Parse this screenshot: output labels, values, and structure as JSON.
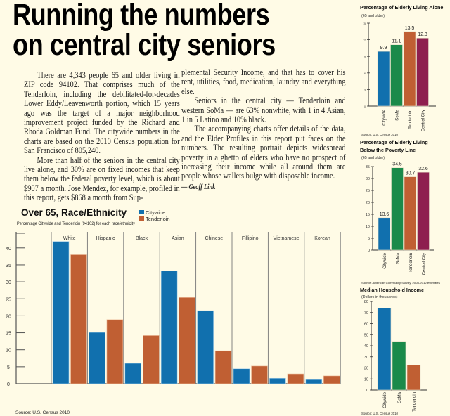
{
  "headline": [
    "Running the numbers",
    "on central city seniors"
  ],
  "article": {
    "col1": [
      "There are 4,343 people 65 and older living in ZIP code 94102. That comprises much of the Tenderloin, including the debilitated-for-decades Lower Eddy/Leavenworth portion, which 15 years ago was the target of a major neighborhood improvement project funded by the Richard and Rhoda Goldman Fund. The citywide numbers in the charts are based on the 2010 Census population for San Francisco of 805,240.",
      "More than half of the seniors in the central city live alone, and 30% are on fixed incomes that keep them below the federal poverty level, which is about $907 a month. Jose Mendez, for example, profiled in this report, gets $868 a month from Sup-"
    ],
    "col2": [
      "plemental Security Income, and that has to cover his rent, utilities, food, medication, laundry and everything else.",
      "Seniors in the central city — Tenderloin and western SoMa — are 63% nonwhite, with 1 in 4 Asian, 1 in 5 Latino and 10% black.",
      "The accompanying charts offer details of the data, and the Elder Profiles in this report put faces on the numbers. The resulting portrait depicts widespread poverty in a ghetto of elders who have no prospect of increasing their income while all around them are people whose wallets bulge with disposable income."
    ],
    "byline": "— Geoff Link"
  },
  "colors": {
    "citywide": "#1170ae",
    "soma": "#1a8a4a",
    "tenderloin": "#c05f33",
    "central_city": "#8e1f4f",
    "background": "#fffbe6"
  },
  "chart_data": [
    {
      "type": "bar",
      "title": "Over 65, Race/Ethnicity",
      "subtitle": "Percentage Citywide and Tenderloin (94102) for each race/ethnicity",
      "categories": [
        "White",
        "Hispanic",
        "Black",
        "Asian",
        "Chinese",
        "Fillipino",
        "Vietnamese",
        "Korean"
      ],
      "series": [
        {
          "name": "Citywide",
          "values": [
            41.9,
            15.1,
            6.0,
            33.2,
            21.5,
            4.4,
            1.6,
            1.2
          ]
        },
        {
          "name": "Tenderloin",
          "values": [
            38.0,
            18.9,
            14.2,
            25.4,
            9.7,
            5.2,
            2.9,
            2.3
          ]
        }
      ],
      "ylim": [
        0,
        44
      ],
      "yticks": [
        0,
        5,
        10,
        15,
        20,
        25,
        30,
        35,
        40
      ],
      "legend": "top-right",
      "source": "Source: U.S. Census 2010"
    },
    {
      "type": "bar",
      "title": "Percentage of Elderly Living Alone",
      "subtitle": "(65 and older)",
      "categories": [
        "Citywide",
        "SoMa",
        "Tenderloin",
        "Central City"
      ],
      "values": [
        9.9,
        11.1,
        13.5,
        12.3
      ],
      "labels": [
        "9.9",
        "11.1",
        "13.5",
        "12.3"
      ],
      "ylim": [
        0,
        15
      ],
      "yticks": [
        0,
        3,
        6,
        9,
        12,
        15
      ],
      "source": "Source: U.S. Census 2010"
    },
    {
      "type": "bar",
      "title": "Percentage of Elderly Living Below the Poverty Line",
      "title_lines": [
        "Percentage of Elderly Living",
        "Below the Poverty Line"
      ],
      "subtitle": "(65 and older)",
      "categories": [
        "Citywide",
        "SoMa",
        "Tenderloin",
        "Central City"
      ],
      "values": [
        13.6,
        34.5,
        30.7,
        32.6
      ],
      "labels": [
        "13.6",
        "34.5",
        "30.7",
        "32.6"
      ],
      "ylim": [
        0,
        35
      ],
      "yticks": [
        0,
        5,
        10,
        15,
        20,
        25,
        30,
        35
      ],
      "source": "Source: American Community Survey, 2008-2012 estimates"
    },
    {
      "type": "bar",
      "title": "Median Household Income",
      "subtitle": "(Dollars in thousands)",
      "categories": [
        "Citywide",
        "SoMa",
        "Tenderloin"
      ],
      "values": [
        74,
        44,
        22.5
      ],
      "ylim": [
        0,
        80
      ],
      "yticks": [
        0,
        10,
        20,
        30,
        40,
        50,
        60,
        70,
        80
      ],
      "source": "Source: U.S. Census 2010"
    }
  ]
}
